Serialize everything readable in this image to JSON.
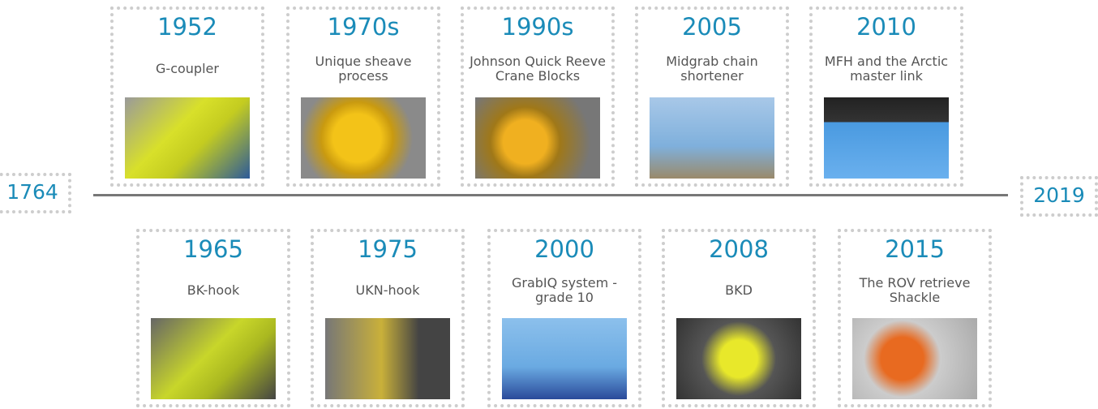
{
  "start": "1764",
  "end": "2019",
  "top": [
    {
      "year": "1952",
      "label": "G-coupler"
    },
    {
      "year": "1970s",
      "label": "Unique sheave process"
    },
    {
      "year": "1990s",
      "label": "Johnson Quick Reeve Crane Blocks"
    },
    {
      "year": "2005",
      "label": "Midgrab chain shortener"
    },
    {
      "year": "2010",
      "label": "MFH and the Arctic master link"
    }
  ],
  "bottom": [
    {
      "year": "1965",
      "label": "BK-hook"
    },
    {
      "year": "1975",
      "label": "UKN-hook"
    },
    {
      "year": "2000",
      "label": "GrabIQ system - grade 10"
    },
    {
      "year": "2008",
      "label": "BKD"
    },
    {
      "year": "2015",
      "label": "The ROV retrieve Shackle"
    }
  ]
}
